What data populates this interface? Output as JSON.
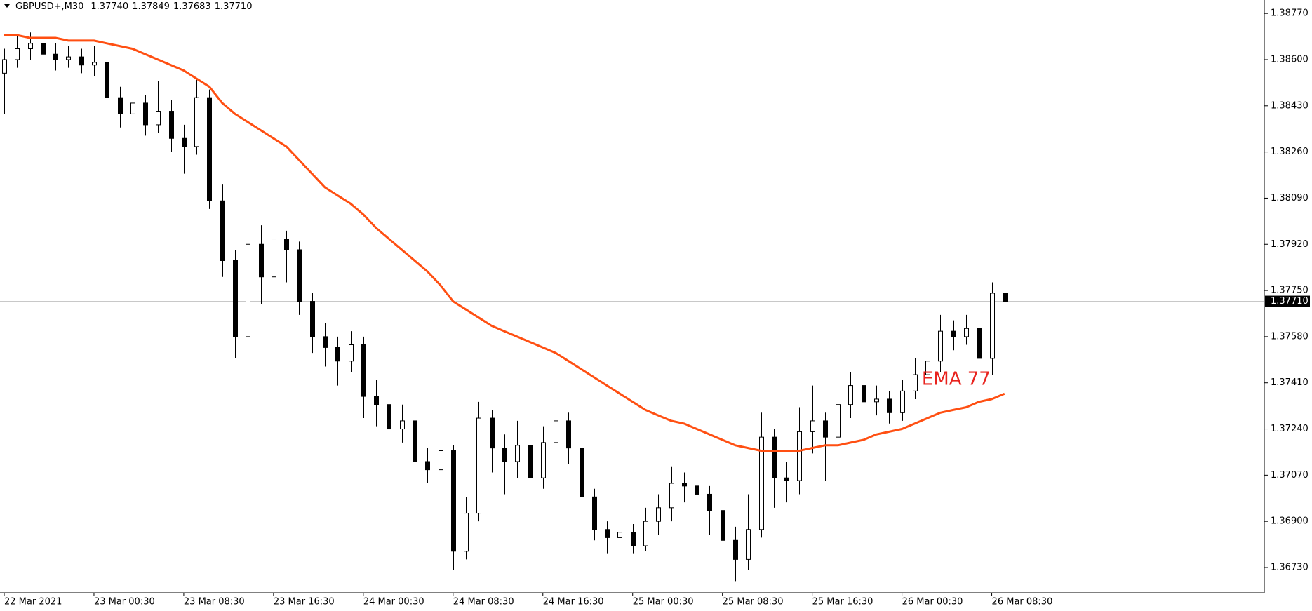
{
  "chart_data": {
    "type": "candlestick",
    "header": {
      "symbol": "GBPUSD+,M30",
      "ohlc_labels": [
        "1.37740",
        "1.37849",
        "1.37683",
        "1.37710"
      ]
    },
    "categories": [
      "22 Mar 2021",
      null,
      null,
      null,
      null,
      null,
      null,
      "23 Mar 00:30",
      null,
      null,
      null,
      null,
      null,
      null,
      "23 Mar 08:30",
      null,
      null,
      null,
      null,
      null,
      null,
      "23 Mar 16:30",
      null,
      null,
      null,
      null,
      null,
      null,
      "24 Mar 00:30",
      null,
      null,
      null,
      null,
      null,
      null,
      "24 Mar 08:30",
      null,
      null,
      null,
      null,
      null,
      null,
      "24 Mar 16:30",
      null,
      null,
      null,
      null,
      null,
      null,
      "25 Mar 00:30",
      null,
      null,
      null,
      null,
      null,
      null,
      "25 Mar 08:30",
      null,
      null,
      null,
      null,
      null,
      null,
      "25 Mar 16:30",
      null,
      null,
      null,
      null,
      null,
      null,
      "26 Mar 00:30",
      null,
      null,
      null,
      null,
      null,
      null,
      "26 Mar 08:30",
      null
    ],
    "open": [
      1.3855,
      1.386,
      1.3864,
      1.3866,
      1.3862,
      1.386,
      1.3861,
      1.3858,
      1.3859,
      1.3846,
      1.384,
      1.3844,
      1.3836,
      1.3841,
      1.3831,
      1.3828,
      1.3846,
      1.3808,
      1.3786,
      1.3758,
      1.3792,
      1.378,
      1.3794,
      1.379,
      1.3771,
      1.3758,
      1.3754,
      1.3749,
      1.3755,
      1.3736,
      1.3733,
      1.3724,
      1.3727,
      1.3712,
      1.3709,
      1.3716,
      1.3679,
      1.3693,
      1.3728,
      1.3717,
      1.3712,
      1.3718,
      1.3706,
      1.3719,
      1.3727,
      1.3717,
      1.3699,
      1.3687,
      1.3684,
      1.3686,
      1.3681,
      1.369,
      1.3695,
      1.3704,
      1.3703,
      1.37,
      1.3694,
      1.3683,
      1.3676,
      1.3687,
      1.3721,
      1.3706,
      1.3705,
      1.3723,
      1.3727,
      1.3721,
      1.3733,
      1.374,
      1.3734,
      1.3735,
      1.373,
      1.3738,
      1.3744,
      1.3749,
      1.376,
      1.3758,
      1.3761,
      1.375,
      1.3774
    ],
    "high": [
      1.3864,
      1.3869,
      1.387,
      1.3869,
      1.3866,
      1.3865,
      1.3864,
      1.3865,
      1.3862,
      1.385,
      1.3849,
      1.3847,
      1.3852,
      1.3845,
      1.3836,
      1.3853,
      1.3849,
      1.3814,
      1.379,
      1.3797,
      1.3799,
      1.38,
      1.3797,
      1.3793,
      1.3774,
      1.3763,
      1.3758,
      1.376,
      1.3758,
      1.3742,
      1.3739,
      1.3733,
      1.373,
      1.3717,
      1.3722,
      1.3718,
      1.3699,
      1.3734,
      1.3731,
      1.3722,
      1.3727,
      1.3722,
      1.3725,
      1.3735,
      1.373,
      1.372,
      1.3702,
      1.369,
      1.369,
      1.3689,
      1.3695,
      1.37,
      1.371,
      1.3708,
      1.3707,
      1.3703,
      1.3697,
      1.3688,
      1.37,
      1.373,
      1.3724,
      1.3712,
      1.3732,
      1.374,
      1.373,
      1.3738,
      1.3745,
      1.3744,
      1.374,
      1.3738,
      1.3742,
      1.375,
      1.3757,
      1.3766,
      1.3764,
      1.3766,
      1.3768,
      1.3778,
      1.37849
    ],
    "low": [
      1.384,
      1.3857,
      1.386,
      1.3858,
      1.3856,
      1.3857,
      1.3855,
      1.3854,
      1.3842,
      1.3835,
      1.3836,
      1.3832,
      1.3833,
      1.3826,
      1.3818,
      1.3825,
      1.3805,
      1.378,
      1.375,
      1.3755,
      1.377,
      1.3772,
      1.3778,
      1.3766,
      1.3752,
      1.3747,
      1.374,
      1.3745,
      1.3728,
      1.3725,
      1.372,
      1.3719,
      1.3705,
      1.3704,
      1.3707,
      1.3672,
      1.3676,
      1.369,
      1.3708,
      1.37,
      1.3706,
      1.3696,
      1.3702,
      1.3714,
      1.3711,
      1.3695,
      1.3683,
      1.3678,
      1.368,
      1.3678,
      1.3679,
      1.3685,
      1.369,
      1.3697,
      1.3692,
      1.3685,
      1.3676,
      1.3668,
      1.3672,
      1.3684,
      1.3695,
      1.3697,
      1.37,
      1.3715,
      1.3705,
      1.3718,
      1.3728,
      1.373,
      1.3729,
      1.3726,
      1.3727,
      1.3735,
      1.374,
      1.3745,
      1.3753,
      1.3755,
      1.3741,
      1.3744,
      1.37683
    ],
    "close": [
      1.386,
      1.3864,
      1.3866,
      1.3862,
      1.386,
      1.3861,
      1.3858,
      1.3859,
      1.3846,
      1.384,
      1.3844,
      1.3836,
      1.3841,
      1.3831,
      1.3828,
      1.3846,
      1.3808,
      1.3786,
      1.3758,
      1.3792,
      1.378,
      1.3794,
      1.379,
      1.3771,
      1.3758,
      1.3754,
      1.3749,
      1.3755,
      1.3736,
      1.3733,
      1.3724,
      1.3727,
      1.3712,
      1.3709,
      1.3716,
      1.3679,
      1.3693,
      1.3728,
      1.3717,
      1.3712,
      1.3718,
      1.3706,
      1.3719,
      1.3727,
      1.3717,
      1.3699,
      1.3687,
      1.3684,
      1.3686,
      1.3681,
      1.369,
      1.3695,
      1.3704,
      1.3703,
      1.37,
      1.3694,
      1.3683,
      1.3676,
      1.3687,
      1.3721,
      1.3706,
      1.3705,
      1.3723,
      1.3727,
      1.3721,
      1.3733,
      1.374,
      1.3734,
      1.3735,
      1.373,
      1.3738,
      1.3744,
      1.3749,
      1.376,
      1.3758,
      1.3761,
      1.375,
      1.3774,
      1.3771
    ],
    "series": [
      {
        "name": "EMA 77",
        "color": "#ff4f12",
        "label_color": "#e8231e",
        "values": [
          1.3869,
          1.3869,
          1.3868,
          1.3868,
          1.3868,
          1.3867,
          1.3867,
          1.3867,
          1.3866,
          1.3865,
          1.3864,
          1.3862,
          1.386,
          1.3858,
          1.3856,
          1.3853,
          1.385,
          1.3844,
          1.384,
          1.3837,
          1.3834,
          1.3831,
          1.3828,
          1.3823,
          1.3818,
          1.3813,
          1.381,
          1.3807,
          1.3803,
          1.3798,
          1.3794,
          1.379,
          1.3786,
          1.3782,
          1.3777,
          1.3771,
          1.3768,
          1.3765,
          1.3762,
          1.376,
          1.3758,
          1.3756,
          1.3754,
          1.3752,
          1.3749,
          1.3746,
          1.3743,
          1.374,
          1.3737,
          1.3734,
          1.3731,
          1.3729,
          1.3727,
          1.3726,
          1.3724,
          1.3722,
          1.372,
          1.3718,
          1.3717,
          1.3716,
          1.3716,
          1.3716,
          1.3716,
          1.3717,
          1.3718,
          1.3718,
          1.3719,
          1.372,
          1.3722,
          1.3723,
          1.3724,
          1.3726,
          1.3728,
          1.373,
          1.3731,
          1.3732,
          1.3734,
          1.3735,
          1.3737
        ]
      }
    ],
    "current_price": {
      "value": 1.3771,
      "label": "1.37710"
    },
    "ylim": [
      1.36637,
      1.38804
    ],
    "yticks": [
      {
        "value": 1.3877,
        "label": "1.38770"
      },
      {
        "value": 1.386,
        "label": "1.38600"
      },
      {
        "value": 1.3843,
        "label": "1.38430"
      },
      {
        "value": 1.3826,
        "label": "1.38260"
      },
      {
        "value": 1.3809,
        "label": "1.38090"
      },
      {
        "value": 1.3792,
        "label": "1.37920"
      },
      {
        "value": 1.3775,
        "label": "1.37750"
      },
      {
        "value": 1.3758,
        "label": "1.37580"
      },
      {
        "value": 1.3741,
        "label": "1.37410"
      },
      {
        "value": 1.3724,
        "label": "1.37240"
      },
      {
        "value": 1.3707,
        "label": "1.37070"
      },
      {
        "value": 1.369,
        "label": "1.36900"
      },
      {
        "value": 1.3673,
        "label": "1.36730"
      }
    ],
    "grid": false
  }
}
